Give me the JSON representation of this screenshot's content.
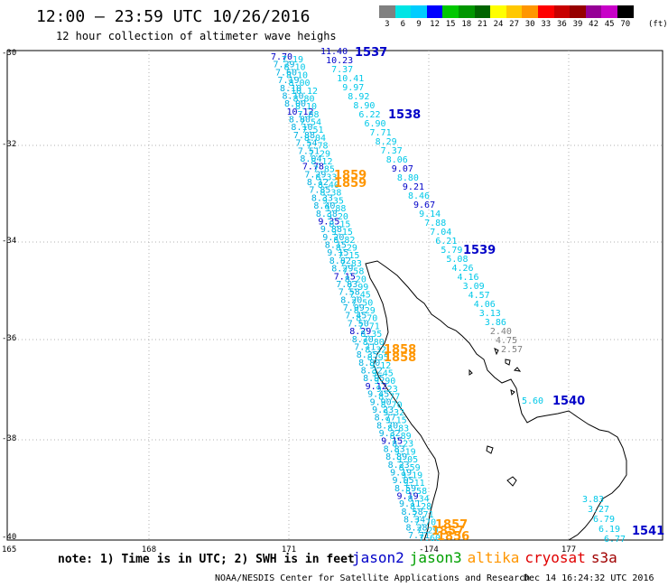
{
  "header": {
    "title": "12:00 — 23:59 UTC 10/26/2016",
    "subtitle": "12 hour collection of altimeter wave heighs"
  },
  "colorbar": {
    "labels": [
      "3",
      "6",
      "9",
      "12",
      "15",
      "18",
      "21",
      "24",
      "27",
      "30",
      "33",
      "36",
      "39",
      "42",
      "45",
      "70"
    ],
    "unit": "(ft)",
    "colors": [
      "#808080",
      "#00e5e5",
      "#00cdff",
      "#0000ff",
      "#00c800",
      "#009600",
      "#006400",
      "#ffff00",
      "#ffc800",
      "#ff9600",
      "#ff0000",
      "#c80000",
      "#960000",
      "#960096",
      "#c800c8",
      "#000000"
    ]
  },
  "axes": {
    "lat_labels": [
      "-30",
      "-32",
      "-34",
      "-36",
      "-38",
      "-40"
    ],
    "lon_labels": [
      "165",
      "168",
      "171",
      "-174",
      "177"
    ]
  },
  "tracks": [
    {
      "id": "1537",
      "color": "#0000c8",
      "label_color": "#0000c8",
      "values": [
        "11.40",
        "10.23",
        "7.37",
        "10.41",
        "9.97",
        "8.92",
        "8.90",
        "6.22",
        "6.90",
        "7.71",
        "8.29",
        "7.37",
        "8.06",
        "9.07",
        "8.80",
        "9.21",
        "8.46",
        "9.67",
        "9.14",
        "7.88",
        "7.04",
        "6.21",
        "5.79",
        "5.08",
        "4.26",
        "4.16",
        "3.09",
        "4.57",
        "4.06",
        "3.13",
        "3.86",
        "2.40",
        "4.75",
        "2.57"
      ]
    },
    {
      "id": "1538",
      "color": "#0000c8",
      "label_color": "#0000c8",
      "values": []
    },
    {
      "id": "1539",
      "color": "#0000c8",
      "label_color": "#0000c8",
      "values": []
    },
    {
      "id": "1540",
      "color": "#0000c8",
      "label_color": "#0000c8",
      "values": [
        "5.60"
      ]
    },
    {
      "id": "1541",
      "color": "#0000c8",
      "label_color": "#0000c8",
      "values": [
        "3.83",
        "3.27",
        "6.79",
        "6.19",
        "6.77"
      ]
    },
    {
      "id": "1859",
      "color": "#ff9600",
      "label_color": "#ff9600",
      "values": []
    },
    {
      "id": "1858",
      "color": "#ff9600",
      "label_color": "#ff9600",
      "values": []
    },
    {
      "id": "1857",
      "color": "#ff9600",
      "label_color": "#ff9600",
      "values": []
    }
  ],
  "track_labels": [
    "1537",
    "1538",
    "1539",
    "1540",
    "1541",
    "1859",
    "1859",
    "1858",
    "1858",
    "1857",
    "1857",
    "1856"
  ],
  "jason_track_values": [
    "7.70",
    "7.29",
    "7.60",
    "7.19",
    "8.10",
    "8.10",
    "8.00",
    "10.12",
    "8.80",
    "8.10",
    "7.88",
    "7.54",
    "7.51",
    "8.04",
    "7.78",
    "7.29",
    "8.12",
    "7.85",
    "8.33",
    "8.40",
    "8.38",
    "9.35",
    "9.88",
    "9.20",
    "8.15",
    "9.15",
    "8.82",
    "8.29",
    "7.15",
    "7.83",
    "7.58",
    "8.20",
    "7.99",
    "7.45",
    "7.50",
    "8.29",
    "8.70",
    "7.71",
    "8.35",
    "8.80",
    "8.32",
    "8.95",
    "9.12",
    "9.45",
    "9.90",
    "9.23",
    "8.77",
    "8.70",
    "9.32",
    "9.15",
    "8.83",
    "8.89",
    "8.23",
    "9.19",
    "9.05",
    "8.59",
    "9.19",
    "9.11",
    "8.58",
    "8.34",
    "8.28",
    "7.71"
  ],
  "footer": {
    "note": "note: 1) Time is in UTC; 2) SWH is in feet",
    "satellites": [
      {
        "name": "jason2",
        "color": "#0000c8"
      },
      {
        "name": "jason3",
        "color": "#00a000"
      },
      {
        "name": "altika",
        "color": "#ff9600"
      },
      {
        "name": "cryosat",
        "color": "#e00000"
      },
      {
        "name": "s3a",
        "color": "#a00000"
      }
    ],
    "credit": "NOAA/NESDIS Center for Satellite Applications and Research",
    "timestamp": "Dec 14 16:24:32 UTC 2016"
  }
}
